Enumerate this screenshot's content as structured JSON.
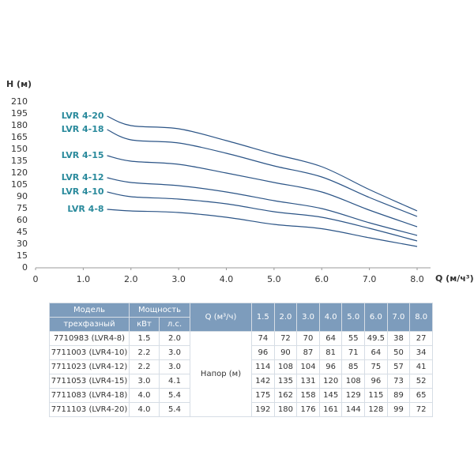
{
  "chart_data": {
    "type": "line",
    "x_label": "Q (м/ч³)",
    "y_label": "H (м)",
    "x": [
      1.5,
      2,
      3,
      4,
      5,
      6,
      7,
      8
    ],
    "xlim": [
      0,
      8
    ],
    "xticks": [
      0,
      {
        "value": 1,
        "label": "1.0"
      },
      {
        "value": 2,
        "label": "2.0"
      },
      {
        "value": 3,
        "label": "3.0"
      },
      {
        "value": 4,
        "label": "4.0"
      },
      {
        "value": 5,
        "label": "5.0"
      },
      {
        "value": 6,
        "label": "6.0"
      },
      {
        "value": 7,
        "label": "7.0"
      },
      {
        "value": 8,
        "label": "8.0"
      }
    ],
    "ylim": [
      0,
      210
    ],
    "yticks": [
      0,
      15,
      30,
      45,
      60,
      75,
      90,
      105,
      120,
      135,
      150,
      165,
      180,
      195,
      210
    ],
    "line_color": "#2b5486",
    "label_color": "#2a8a9c",
    "series": [
      {
        "name": "LVR 4-8",
        "values": [
          74,
          72,
          70,
          64,
          55,
          49.5,
          38,
          27
        ]
      },
      {
        "name": "LVR 4-10",
        "values": [
          96,
          90,
          87,
          81,
          71,
          64,
          50,
          34
        ]
      },
      {
        "name": "LVR 4-12",
        "values": [
          114,
          108,
          104,
          96,
          85,
          75,
          57,
          41
        ]
      },
      {
        "name": "LVR 4-15",
        "values": [
          142,
          135,
          131,
          120,
          108,
          96,
          73,
          52
        ]
      },
      {
        "name": "LVR 4-18",
        "values": [
          175,
          162,
          158,
          145,
          129,
          115,
          89,
          65
        ]
      },
      {
        "name": "LVR 4-20",
        "values": [
          192,
          180,
          176,
          161,
          144,
          128,
          99,
          72
        ]
      }
    ]
  },
  "table": {
    "header": {
      "model": "Модель",
      "power": "Мощность",
      "q": "Q (м³/ч)",
      "q_values": [
        "1.5",
        "2.0",
        "3.0",
        "4.0",
        "5.0",
        "6.0",
        "7.0",
        "8.0"
      ],
      "type": "трехфазный",
      "kw": "кВт",
      "hp": "л.с."
    },
    "head_label": "Напор (м)",
    "rows": [
      [
        "7710983 (LVR4-8)",
        "1.5",
        "2.0"
      ],
      [
        "7711003 (LVR4-10)",
        "2.2",
        "3.0"
      ],
      [
        "7711023 (LVR4-12)",
        "2.2",
        "3.0"
      ],
      [
        "7711053 (LVR4-15)",
        "3.0",
        "4.1"
      ],
      [
        "7711083 (LVR4-18)",
        "4.0",
        "5.4"
      ],
      [
        "7711103 (LVR4-20)",
        "4.0",
        "5.4"
      ]
    ]
  }
}
